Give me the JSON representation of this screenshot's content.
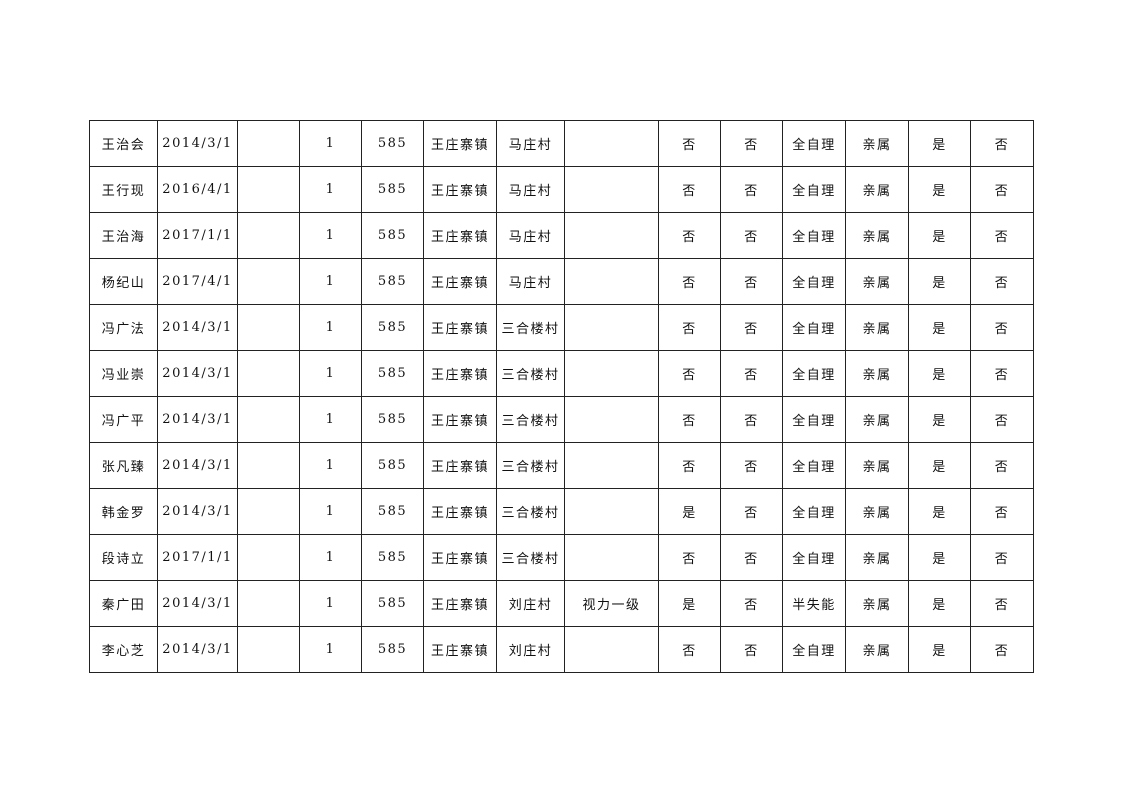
{
  "table": {
    "rows": [
      [
        "王治会",
        "2014/3/1",
        "",
        "1",
        "585",
        "王庄寨镇",
        "马庄村",
        "",
        "否",
        "否",
        "全自理",
        "亲属",
        "是",
        "否"
      ],
      [
        "王行现",
        "2016/4/1",
        "",
        "1",
        "585",
        "王庄寨镇",
        "马庄村",
        "",
        "否",
        "否",
        "全自理",
        "亲属",
        "是",
        "否"
      ],
      [
        "王治海",
        "2017/1/1",
        "",
        "1",
        "585",
        "王庄寨镇",
        "马庄村",
        "",
        "否",
        "否",
        "全自理",
        "亲属",
        "是",
        "否"
      ],
      [
        "杨纪山",
        "2017/4/1",
        "",
        "1",
        "585",
        "王庄寨镇",
        "马庄村",
        "",
        "否",
        "否",
        "全自理",
        "亲属",
        "是",
        "否"
      ],
      [
        "冯广法",
        "2014/3/1",
        "",
        "1",
        "585",
        "王庄寨镇",
        "三合楼村",
        "",
        "否",
        "否",
        "全自理",
        "亲属",
        "是",
        "否"
      ],
      [
        "冯业崇",
        "2014/3/1",
        "",
        "1",
        "585",
        "王庄寨镇",
        "三合楼村",
        "",
        "否",
        "否",
        "全自理",
        "亲属",
        "是",
        "否"
      ],
      [
        "冯广平",
        "2014/3/1",
        "",
        "1",
        "585",
        "王庄寨镇",
        "三合楼村",
        "",
        "否",
        "否",
        "全自理",
        "亲属",
        "是",
        "否"
      ],
      [
        "张凡臻",
        "2014/3/1",
        "",
        "1",
        "585",
        "王庄寨镇",
        "三合楼村",
        "",
        "否",
        "否",
        "全自理",
        "亲属",
        "是",
        "否"
      ],
      [
        "韩金罗",
        "2014/3/1",
        "",
        "1",
        "585",
        "王庄寨镇",
        "三合楼村",
        "",
        "是",
        "否",
        "全自理",
        "亲属",
        "是",
        "否"
      ],
      [
        "段诗立",
        "2017/1/1",
        "",
        "1",
        "585",
        "王庄寨镇",
        "三合楼村",
        "",
        "否",
        "否",
        "全自理",
        "亲属",
        "是",
        "否"
      ],
      [
        "秦广田",
        "2014/3/1",
        "",
        "1",
        "585",
        "王庄寨镇",
        "刘庄村",
        "视力一级",
        "是",
        "否",
        "半失能",
        "亲属",
        "是",
        "否"
      ],
      [
        "李心芝",
        "2014/3/1",
        "",
        "1",
        "585",
        "王庄寨镇",
        "刘庄村",
        "",
        "否",
        "否",
        "全自理",
        "亲属",
        "是",
        "否"
      ]
    ]
  }
}
